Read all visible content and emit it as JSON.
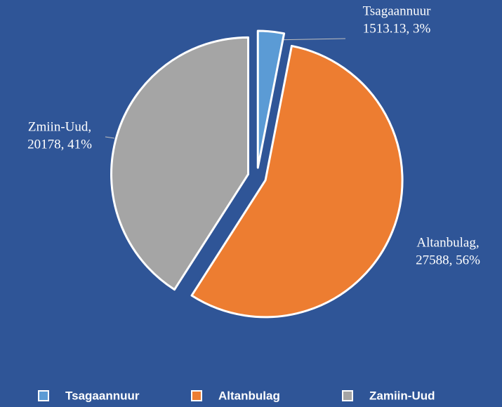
{
  "chart_data": {
    "type": "pie",
    "series": [
      {
        "name": "Tsagaannuur",
        "color": "#5B9BD5",
        "values": [
          1513.13
        ]
      },
      {
        "name": "Altanbulag",
        "color": "#ED7D31",
        "values": [
          27588
        ]
      },
      {
        "name": "Zamiin-Uud",
        "color": "#A5A5A5",
        "values": [
          20178
        ]
      }
    ],
    "data_labels": [
      [
        "Tsagaannuur",
        "1513.13, 3%"
      ],
      [
        "Altanbulag,",
        "27588, 56%"
      ],
      [
        "Zmiin-Uud,",
        "20178, 41%"
      ]
    ],
    "legend": "bottom"
  }
}
